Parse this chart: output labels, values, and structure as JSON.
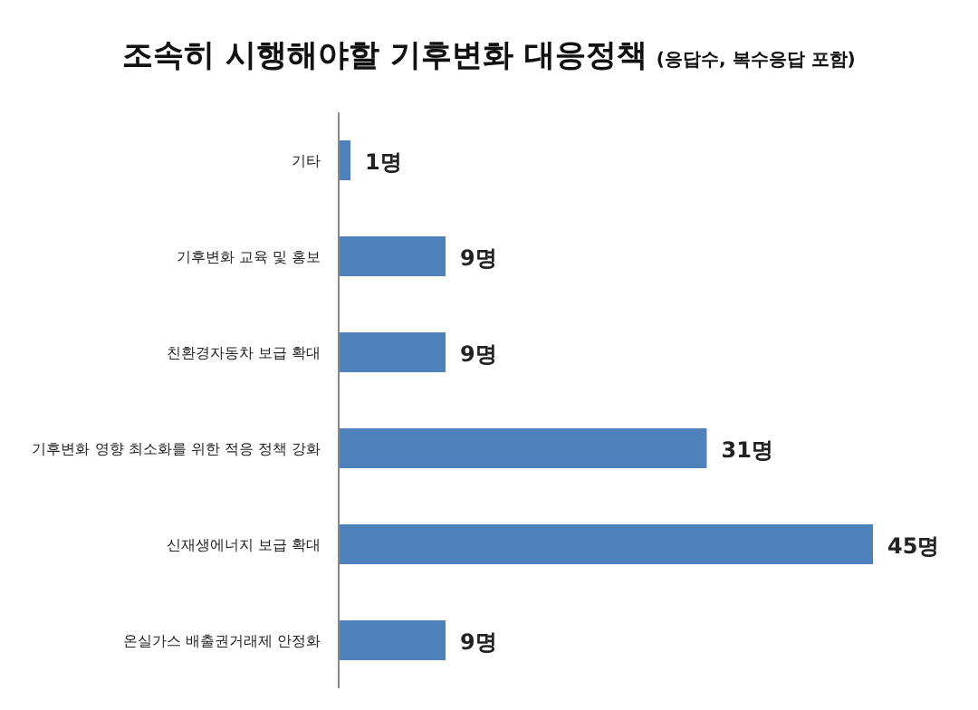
{
  "chart_data": {
    "type": "bar",
    "orientation": "horizontal",
    "title": "조속히 시행해야할 기후변화 대응정책",
    "subtitle": "(응답수, 복수응답 포함)",
    "categories": [
      "기타",
      "기후변화 교육 및 홍보",
      "친환경자동차 보급 확대",
      "기후변화 영향 최소화를 위한 적응 정책 강화",
      "신재생에너지 보급 확대",
      "온실가스 배출권거래제 안정화"
    ],
    "values": [
      1,
      9,
      9,
      31,
      45,
      9
    ],
    "value_labels": [
      "1명",
      "9명",
      "9명",
      "31명",
      "45명",
      "9명"
    ],
    "color": "#4f81bd"
  }
}
